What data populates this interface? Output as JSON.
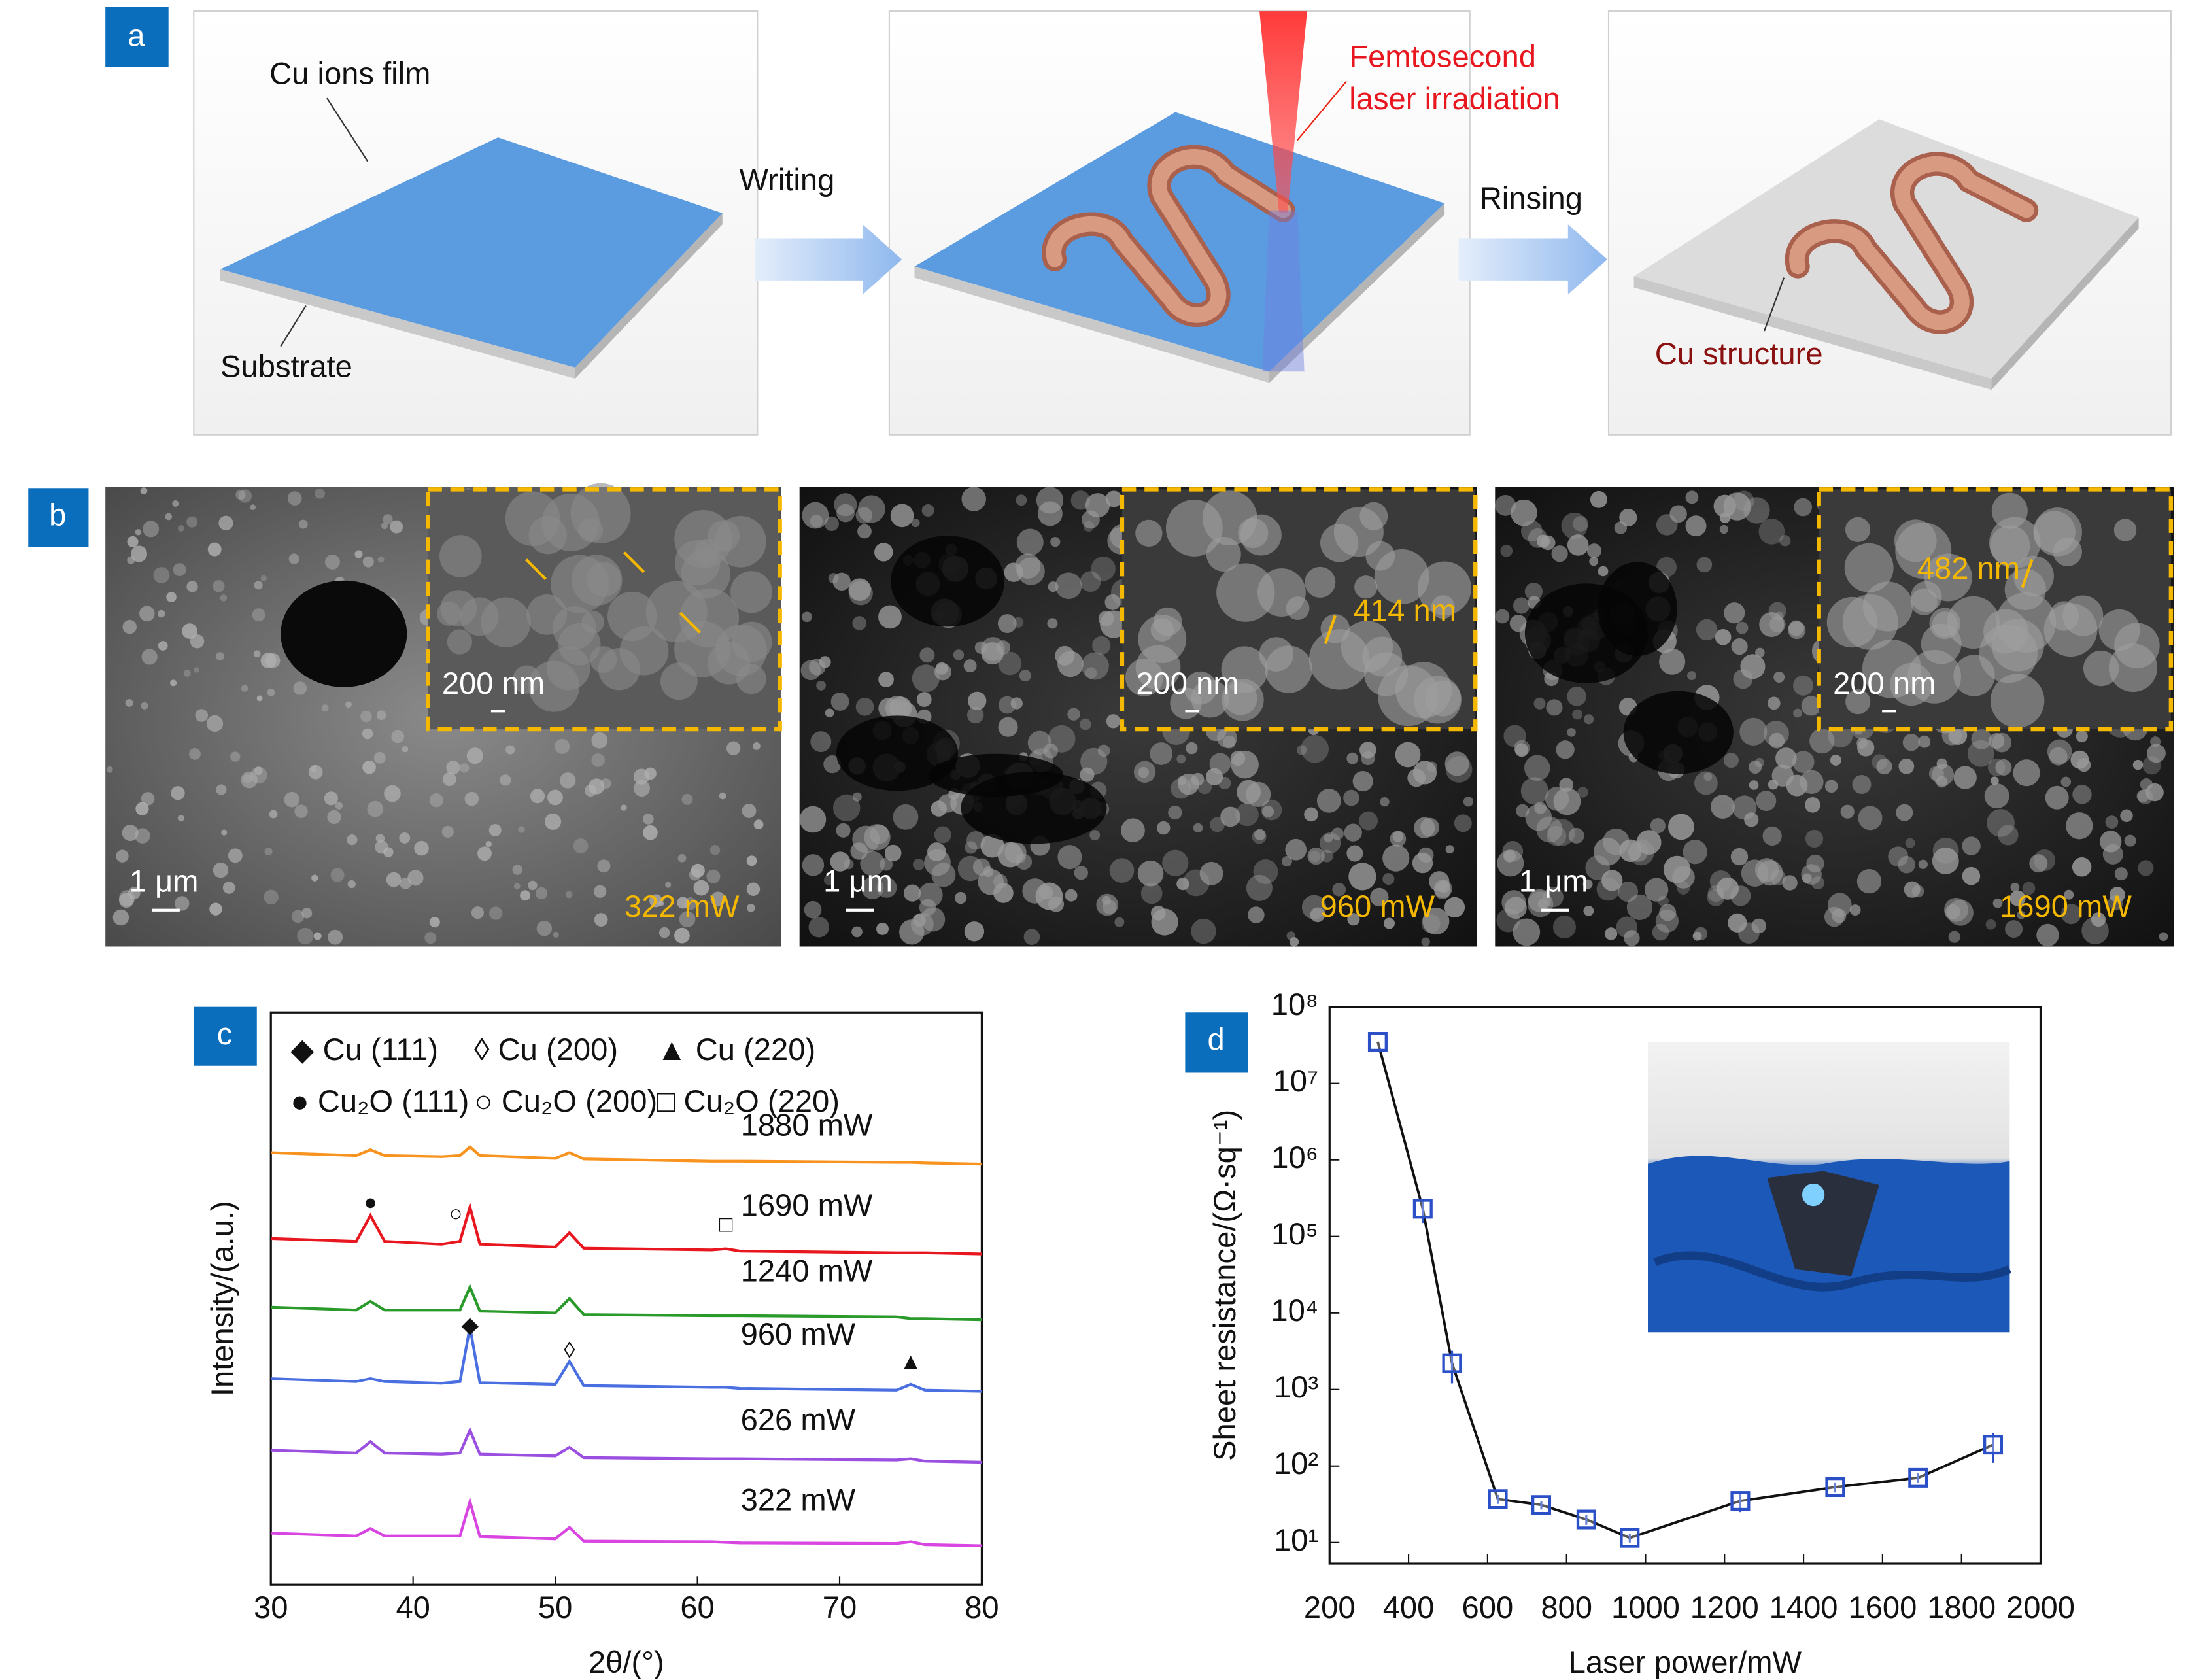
{
  "panels": {
    "a": {
      "label": "a",
      "cu_ions_film": "Cu ions film",
      "substrate": "Substrate",
      "writing": "Writing",
      "laser": [
        "Femtosecond",
        "laser irradiation"
      ],
      "rinsing": "Rinsing",
      "cu_structure": "Cu structure"
    },
    "b": {
      "label": "b",
      "images": [
        {
          "scale_inset": "200 nm",
          "scale": "1 μm",
          "power": "322 mW"
        },
        {
          "scale_inset": "200 nm",
          "scale": "1 μm",
          "power": "960 mW",
          "measure": "414 nm"
        },
        {
          "scale_inset": "200 nm",
          "scale": "1 μm",
          "power": "1690 mW",
          "measure": "482 nm"
        }
      ]
    }
  },
  "chart_data": [
    {
      "type": "line",
      "panel_label": "c",
      "x_label": "2θ/(°)",
      "y_label": "Intensity/(a.u.)",
      "legend": [
        "◆ Cu (111)",
        "◊ Cu (200)",
        "▲ Cu (220)",
        "● Cu₂O (111)",
        "○ Cu₂O (200)",
        "□ Cu₂O (220)"
      ],
      "x": [
        30,
        36,
        37,
        38,
        42,
        43.3,
        44,
        44.7,
        50,
        51,
        52,
        61,
        62,
        63,
        74,
        75,
        76,
        80
      ],
      "series": [
        {
          "name": "1880 mW",
          "color": "#f7931e",
          "values": [
            75.5,
            75,
            76,
            75,
            74.8,
            75,
            76.5,
            75,
            74.5,
            75.5,
            74.4,
            74,
            74,
            74,
            73.8,
            73.8,
            73.7,
            73.5
          ]
        },
        {
          "name": "1690 mW",
          "color": "#e8171f",
          "values": [
            60.5,
            60,
            64.5,
            60,
            59.5,
            60,
            66,
            59.5,
            59,
            61.5,
            58.8,
            58.5,
            58.7,
            58.3,
            58,
            58,
            58,
            57.8
          ]
        },
        {
          "name": "1240 mW",
          "color": "#2a9a2a",
          "values": [
            48.5,
            48,
            49.5,
            48,
            48,
            48,
            52,
            47.8,
            47.5,
            50,
            47.2,
            47,
            47,
            47,
            46.8,
            46.5,
            46.5,
            46.3
          ]
        },
        {
          "name": "960 mW",
          "color": "#4a6fe0",
          "values": [
            36,
            35.5,
            36,
            35.5,
            35.2,
            35.5,
            45,
            35.3,
            35,
            39,
            34.8,
            34.5,
            34.5,
            34.3,
            34,
            35,
            34,
            33.8
          ]
        },
        {
          "name": "626 mW",
          "color": "#9b4fe0",
          "values": [
            23.5,
            23,
            25,
            23,
            22.8,
            23,
            27,
            22.8,
            22.5,
            24,
            22.2,
            22,
            22,
            22,
            21.8,
            22,
            21.6,
            21.4
          ]
        },
        {
          "name": "322 mW",
          "color": "#d945e0",
          "values": [
            9,
            8.5,
            9.8,
            8.5,
            8.5,
            8.5,
            14.5,
            8.4,
            8,
            10,
            7.6,
            7.5,
            7.4,
            7.3,
            7.2,
            7.5,
            7,
            6.8
          ]
        }
      ],
      "peak_markers": [
        {
          "symbol": "●",
          "x": 37,
          "y": 66.6
        },
        {
          "symbol": "○",
          "x": 43,
          "y": 64.6
        },
        {
          "symbol": "□",
          "x": 62,
          "y": 62.7
        },
        {
          "symbol": "◆",
          "x": 44,
          "y": 45.1
        },
        {
          "symbol": "◊",
          "x": 51,
          "y": 40.7
        },
        {
          "symbol": "▲",
          "x": 75,
          "y": 38.8
        }
      ],
      "xlim": [
        30,
        80
      ],
      "xticks": [
        30,
        40,
        50,
        60,
        70,
        80
      ],
      "ylim": [
        0,
        100
      ]
    },
    {
      "type": "line",
      "panel_label": "d",
      "x_label": "Laser power/mW",
      "y_label": "Sheet resistance/(Ω·sq⁻¹)",
      "log_y": true,
      "color": "#2b4fc7",
      "line_color": "#111111",
      "x": [
        322,
        436,
        510,
        626,
        736,
        850,
        960,
        1240,
        1480,
        1690,
        1880
      ],
      "values": [
        35000000,
        230000,
        2200,
        37,
        31,
        20,
        11.5,
        35,
        53,
        70,
        190
      ],
      "errors": [
        0,
        80000,
        1000,
        5,
        4,
        3,
        1.5,
        10,
        8,
        10,
        80
      ],
      "xlim": [
        200,
        2000
      ],
      "xticks": [
        200,
        400,
        600,
        800,
        1000,
        1200,
        1400,
        1600,
        1800,
        2000
      ],
      "ylim": [
        5.3,
        100000000
      ],
      "yticks": [
        {
          "value": 10,
          "label": "10¹"
        },
        {
          "value": 100,
          "label": "10²"
        },
        {
          "value": 1000,
          "label": "10³"
        },
        {
          "value": 10000,
          "label": "10⁴"
        },
        {
          "value": 100000,
          "label": "10⁵"
        },
        {
          "value": 1000000,
          "label": "10⁶"
        },
        {
          "value": 10000000,
          "label": "10⁷"
        },
        {
          "value": 100000000,
          "label": "10⁸"
        }
      ]
    }
  ]
}
